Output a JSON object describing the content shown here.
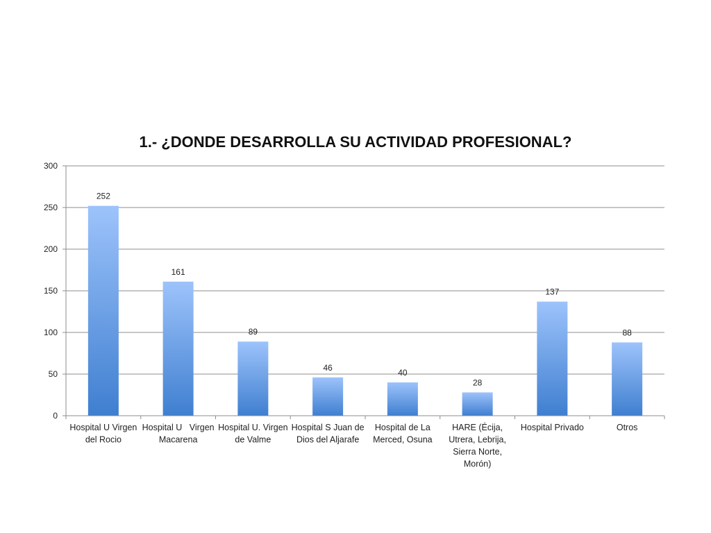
{
  "chart_data": {
    "type": "bar",
    "title": "1.- ¿DONDE DESARROLLA SU ACTIVIDAD PROFESIONAL?",
    "categories": [
      [
        "Hospital U Virgen",
        "del Rocio"
      ],
      [
        "Hospital U   Virgen",
        "Macarena"
      ],
      [
        "Hospital U. Virgen",
        "de Valme"
      ],
      [
        "Hospital S Juan de",
        "Dios del Aljarafe"
      ],
      [
        "Hospital de La",
        "Merced, Osuna"
      ],
      [
        "HARE (Écija,",
        "Utrera, Lebrija,",
        "Sierra Norte,",
        "Morón)"
      ],
      [
        "Hospital Privado"
      ],
      [
        "Otros"
      ]
    ],
    "values": [
      252,
      161,
      89,
      46,
      40,
      28,
      137,
      88
    ],
    "ylim": [
      0,
      300
    ],
    "yticks": [
      0,
      50,
      100,
      150,
      200,
      250,
      300
    ],
    "grid": true,
    "legend": "none",
    "colors": {
      "bar_top": "#9dc3fb",
      "bar_bottom": "#3f7fd0",
      "grid": "#8c8c8c"
    }
  }
}
